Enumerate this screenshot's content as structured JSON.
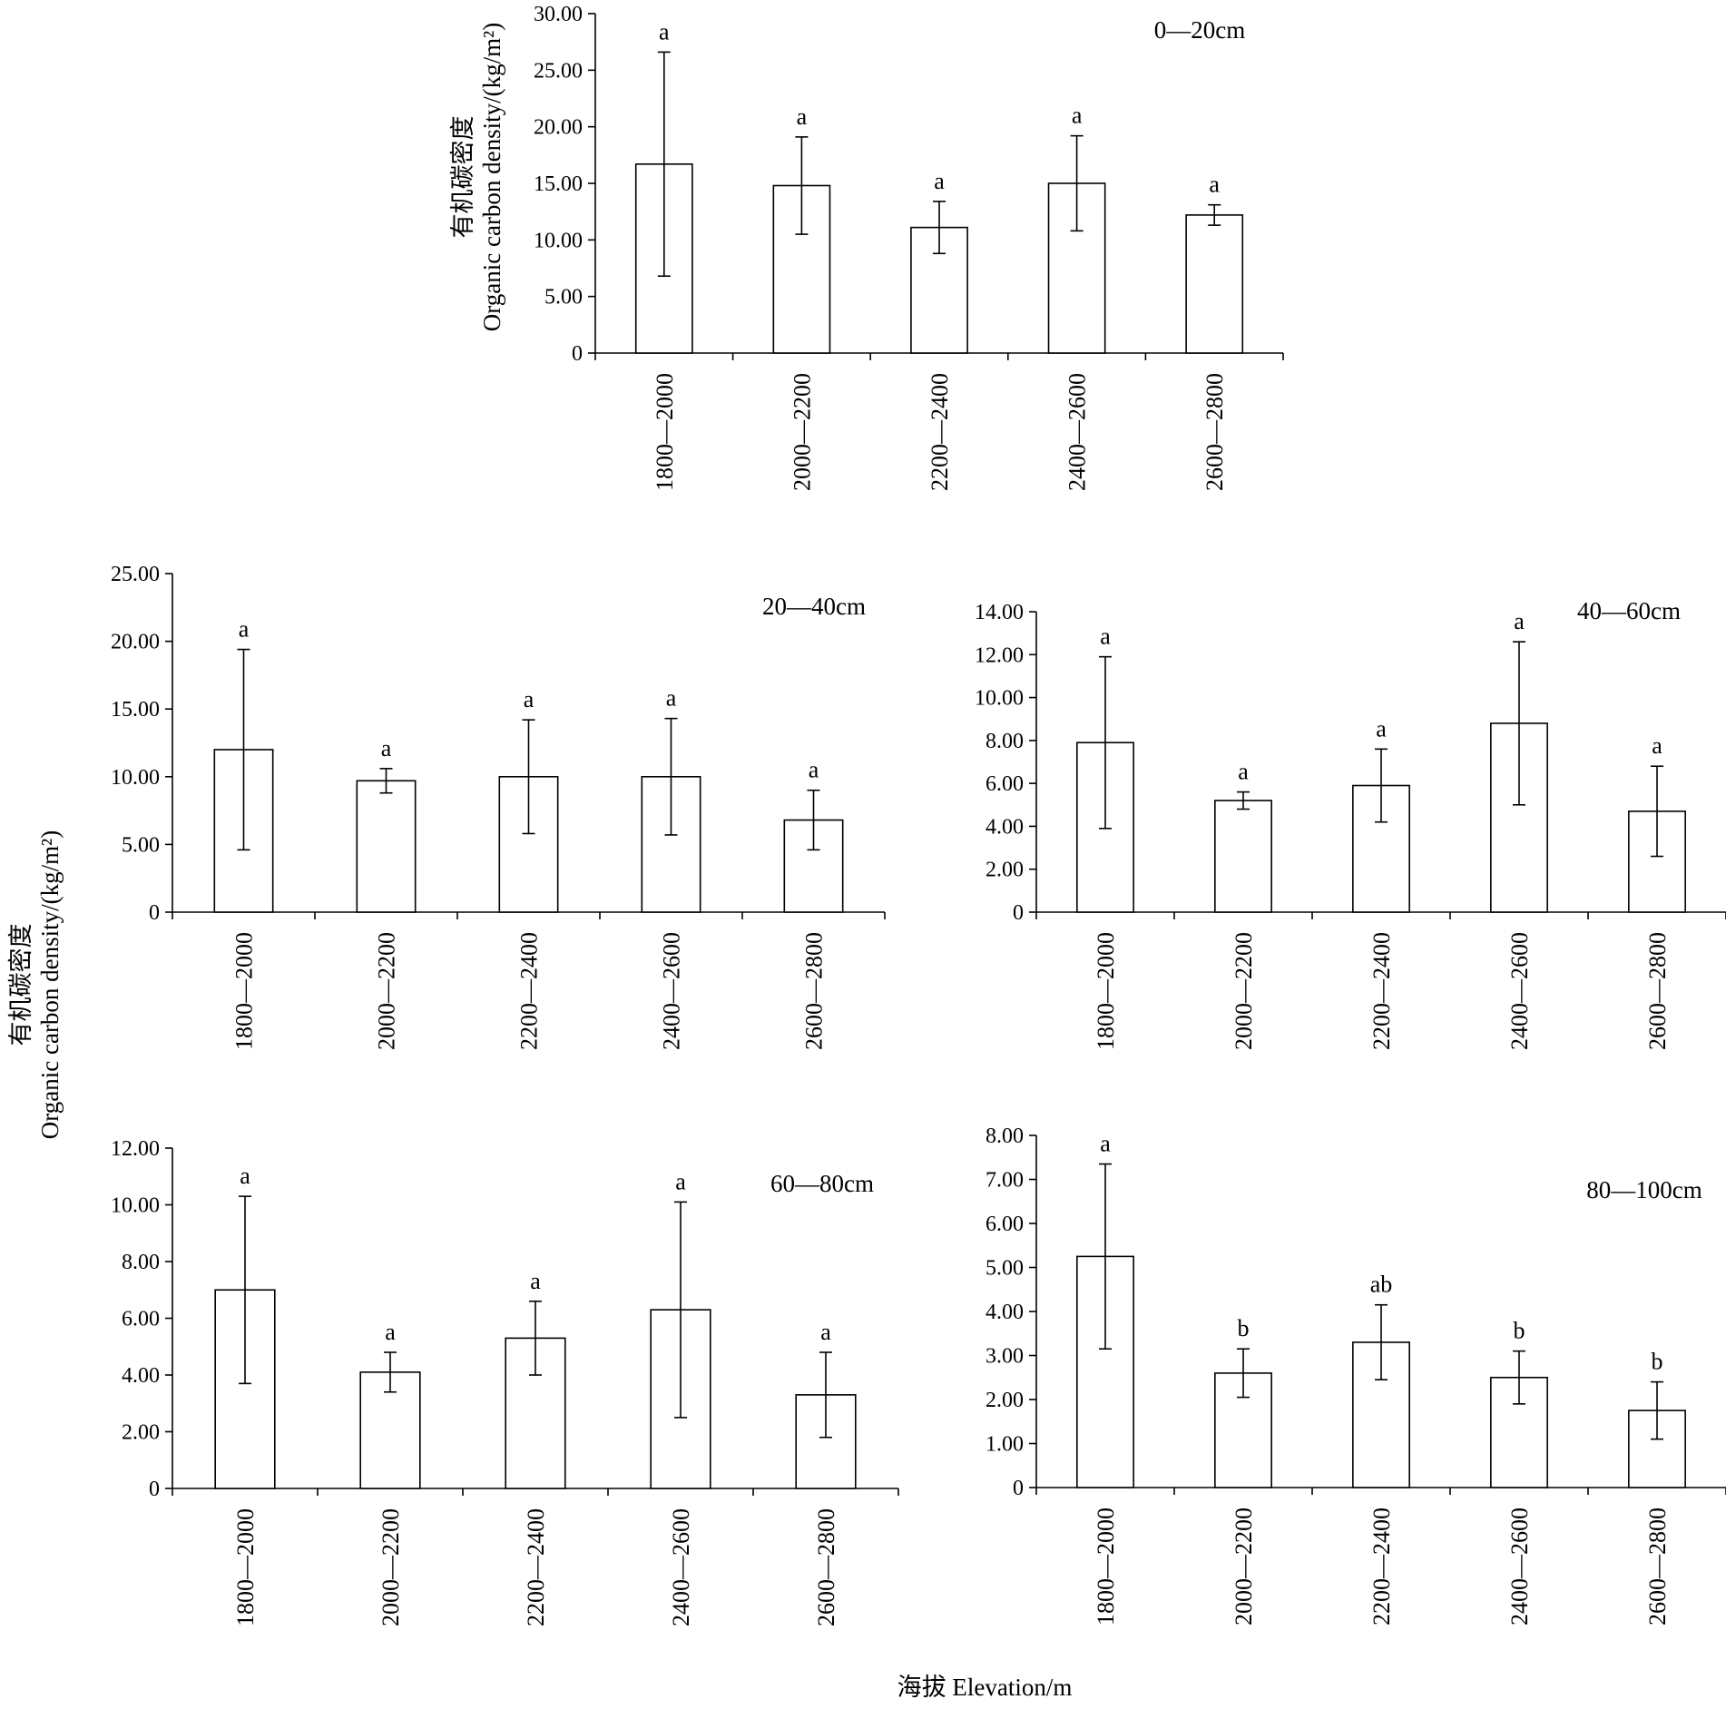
{
  "figure": {
    "shared_ylabel_line1": "有机碳密度",
    "shared_ylabel_line2": "Organic carbon density/(kg/m²)",
    "shared_xlabel": "海拔 Elevation/m"
  },
  "chart_data": [
    {
      "type": "bar",
      "panel_label": "0—20cm",
      "categories": [
        "1800—2000",
        "2000—2200",
        "2200—2400",
        "2400—2600",
        "2600—2800"
      ],
      "values": [
        16.7,
        14.8,
        11.1,
        15.0,
        12.2
      ],
      "errors": [
        9.9,
        4.3,
        2.3,
        4.2,
        0.9
      ],
      "letters": [
        "a",
        "a",
        "a",
        "a",
        "a"
      ],
      "yticks": [
        "0",
        "5.00",
        "10.00",
        "15.00",
        "20.00",
        "25.00",
        "30.00"
      ],
      "ylim": [
        0,
        30
      ],
      "ylabel_line1": "有机碳密度",
      "ylabel_line2": "Organic carbon density/(kg/m²)"
    },
    {
      "type": "bar",
      "panel_label": "20—40cm",
      "categories": [
        "1800—2000",
        "2000—2200",
        "2200—2400",
        "2400—2600",
        "2600—2800"
      ],
      "values": [
        12.0,
        9.7,
        10.0,
        10.0,
        6.8
      ],
      "errors": [
        7.4,
        0.9,
        4.2,
        4.3,
        2.2
      ],
      "letters": [
        "a",
        "a",
        "a",
        "a",
        "a"
      ],
      "yticks": [
        "0",
        "5.00",
        "10.00",
        "15.00",
        "20.00",
        "25.00"
      ],
      "ylim": [
        0,
        25
      ]
    },
    {
      "type": "bar",
      "panel_label": "40—60cm",
      "categories": [
        "1800—2000",
        "2000—2200",
        "2200—2400",
        "2400—2600",
        "2600—2800"
      ],
      "values": [
        7.9,
        5.2,
        5.9,
        8.8,
        4.7
      ],
      "errors": [
        4.0,
        0.4,
        1.7,
        3.8,
        2.1
      ],
      "letters": [
        "a",
        "a",
        "a",
        "a",
        "a"
      ],
      "yticks": [
        "0",
        "2.00",
        "4.00",
        "6.00",
        "8.00",
        "10.00",
        "12.00",
        "14.00"
      ],
      "ylim": [
        0,
        14
      ]
    },
    {
      "type": "bar",
      "panel_label": "60—80cm",
      "categories": [
        "1800—2000",
        "2000—2200",
        "2200—2400",
        "2400—2600",
        "2600—2800"
      ],
      "values": [
        7.0,
        4.1,
        5.3,
        6.3,
        3.3
      ],
      "errors": [
        3.3,
        0.7,
        1.3,
        3.8,
        1.5
      ],
      "letters": [
        "a",
        "a",
        "a",
        "a",
        "a"
      ],
      "yticks": [
        "0",
        "2.00",
        "4.00",
        "6.00",
        "8.00",
        "10.00",
        "12.00"
      ],
      "ylim": [
        0,
        12
      ]
    },
    {
      "type": "bar",
      "panel_label": "80—100cm",
      "categories": [
        "1800—2000",
        "2000—2200",
        "2200—2400",
        "2400—2600",
        "2600—2800"
      ],
      "values": [
        5.25,
        2.6,
        3.3,
        2.5,
        1.75
      ],
      "errors": [
        2.1,
        0.55,
        0.85,
        0.6,
        0.65
      ],
      "letters": [
        "a",
        "b",
        "ab",
        "b",
        "b"
      ],
      "yticks": [
        "0",
        "1.00",
        "2.00",
        "3.00",
        "4.00",
        "5.00",
        "6.00",
        "7.00",
        "8.00"
      ],
      "ylim": [
        0,
        8
      ]
    }
  ]
}
